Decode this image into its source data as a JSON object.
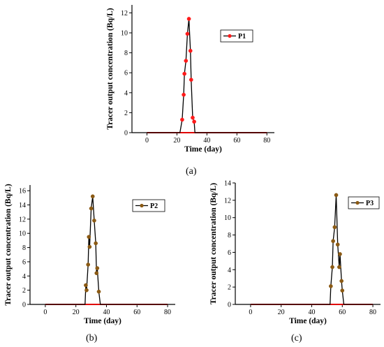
{
  "figure": {
    "sublabels": [
      "(a)",
      "(b)",
      "(c)"
    ]
  },
  "chart_data": [
    {
      "type": "line",
      "xlabel": "Time (day)",
      "ylabel": "Tracer output concentration (Bq/L)",
      "xlim": [
        -10,
        85
      ],
      "ylim": [
        0,
        12.8
      ],
      "xticks": [
        0,
        20,
        40,
        60,
        80
      ],
      "yticks": [
        0,
        2,
        4,
        6,
        8,
        10,
        12
      ],
      "legend_position": "top-right",
      "grid": false,
      "series": [
        {
          "name": "P1",
          "line_color": "#000000",
          "marker_color": "#ff1a1a",
          "baseline": {
            "color": "#e00000",
            "x_from": 0,
            "x_to": 80
          },
          "points": [
            [
              0,
              0
            ],
            [
              2,
              0
            ],
            [
              4,
              0
            ],
            [
              6,
              0
            ],
            [
              8,
              0
            ],
            [
              10,
              0
            ],
            [
              12,
              0
            ],
            [
              14,
              0
            ],
            [
              16,
              0
            ],
            [
              18,
              0
            ],
            [
              20,
              0
            ],
            [
              22,
              0
            ],
            [
              23.5,
              1.3
            ],
            [
              24.5,
              3.8
            ],
            [
              25,
              5.9
            ],
            [
              26,
              7.2
            ],
            [
              27,
              9.9
            ],
            [
              28,
              11.4
            ],
            [
              29,
              8.2
            ],
            [
              29.5,
              5.3
            ],
            [
              30.5,
              1.5
            ],
            [
              31.5,
              1.1
            ],
            [
              32,
              0
            ],
            [
              34,
              0
            ],
            [
              36,
              0
            ],
            [
              38,
              0
            ],
            [
              40,
              0
            ],
            [
              42,
              0
            ],
            [
              44,
              0
            ],
            [
              46,
              0
            ],
            [
              48,
              0
            ],
            [
              50,
              0
            ],
            [
              52,
              0
            ],
            [
              54,
              0
            ],
            [
              56,
              0
            ],
            [
              58,
              0
            ],
            [
              60,
              0
            ],
            [
              62,
              0
            ],
            [
              64,
              0
            ],
            [
              66,
              0
            ],
            [
              68,
              0
            ],
            [
              70,
              0
            ],
            [
              72,
              0
            ],
            [
              74,
              0
            ],
            [
              76,
              0
            ],
            [
              78,
              0
            ],
            [
              80,
              0
            ]
          ]
        }
      ]
    },
    {
      "type": "line",
      "xlabel": "Time (day)",
      "ylabel": "Tracer output concentration (Bq/L)",
      "xlim": [
        -10,
        85
      ],
      "ylim": [
        0,
        16.8
      ],
      "xticks": [
        0,
        20,
        40,
        60,
        80
      ],
      "yticks": [
        0,
        2,
        4,
        6,
        8,
        10,
        12,
        14,
        16
      ],
      "legend_position": "top-right",
      "grid": false,
      "series": [
        {
          "name": "P2",
          "line_color": "#000000",
          "marker_color": "#8b5a14",
          "baseline": {
            "color": "#e00000",
            "x_from": 0,
            "x_to": 80
          },
          "points": [
            [
              0,
              0
            ],
            [
              2,
              0
            ],
            [
              4,
              0
            ],
            [
              6,
              0
            ],
            [
              8,
              0
            ],
            [
              10,
              0
            ],
            [
              12,
              0
            ],
            [
              14,
              0
            ],
            [
              16,
              0
            ],
            [
              18,
              0
            ],
            [
              20,
              0
            ],
            [
              22,
              0
            ],
            [
              24,
              0
            ],
            [
              26,
              0
            ],
            [
              26.5,
              2.7
            ],
            [
              27,
              2
            ],
            [
              28,
              5.6
            ],
            [
              28.5,
              9.5
            ],
            [
              29,
              8.1
            ],
            [
              30,
              13.5
            ],
            [
              31,
              15.2
            ],
            [
              32,
              11.8
            ],
            [
              33,
              8.6
            ],
            [
              33.5,
              4.4
            ],
            [
              34,
              5.1
            ],
            [
              35,
              1.8
            ],
            [
              36,
              0
            ],
            [
              38,
              0
            ],
            [
              40,
              0
            ],
            [
              42,
              0
            ],
            [
              44,
              0
            ],
            [
              46,
              0
            ],
            [
              48,
              0
            ],
            [
              50,
              0
            ],
            [
              52,
              0
            ],
            [
              54,
              0
            ],
            [
              56,
              0
            ],
            [
              58,
              0
            ],
            [
              60,
              0
            ],
            [
              62,
              0
            ],
            [
              64,
              0
            ],
            [
              66,
              0
            ],
            [
              68,
              0
            ],
            [
              70,
              0
            ],
            [
              72,
              0
            ],
            [
              74,
              0
            ],
            [
              76,
              0
            ],
            [
              78,
              0
            ],
            [
              80,
              0
            ]
          ]
        }
      ]
    },
    {
      "type": "line",
      "xlabel": "Time (day)",
      "ylabel": "Tracer output concentration (Bq/L)",
      "xlim": [
        -10,
        85
      ],
      "ylim": [
        0,
        14
      ],
      "xticks": [
        0,
        20,
        40,
        60,
        80
      ],
      "yticks": [
        0,
        2,
        4,
        6,
        8,
        10,
        12,
        14
      ],
      "legend_position": "top-right",
      "grid": false,
      "series": [
        {
          "name": "P3",
          "line_color": "#000000",
          "marker_color": "#8b5a14",
          "baseline": {
            "color": "#e00000",
            "x_from": 0,
            "x_to": 80
          },
          "points": [
            [
              0,
              0
            ],
            [
              2,
              0
            ],
            [
              4,
              0
            ],
            [
              6,
              0
            ],
            [
              8,
              0
            ],
            [
              10,
              0
            ],
            [
              12,
              0
            ],
            [
              14,
              0
            ],
            [
              16,
              0
            ],
            [
              18,
              0
            ],
            [
              20,
              0
            ],
            [
              22,
              0
            ],
            [
              24,
              0
            ],
            [
              26,
              0
            ],
            [
              28,
              0
            ],
            [
              30,
              0
            ],
            [
              32,
              0
            ],
            [
              34,
              0
            ],
            [
              36,
              0
            ],
            [
              38,
              0
            ],
            [
              40,
              0
            ],
            [
              42,
              0
            ],
            [
              44,
              0
            ],
            [
              46,
              0
            ],
            [
              48,
              0
            ],
            [
              50,
              0
            ],
            [
              52,
              0
            ],
            [
              52.5,
              2.1
            ],
            [
              53.5,
              4.3
            ],
            [
              54,
              7.3
            ],
            [
              55,
              8.9
            ],
            [
              56,
              12.6
            ],
            [
              57,
              6.9
            ],
            [
              58,
              4.3
            ],
            [
              58.5,
              5.8
            ],
            [
              59.5,
              2.7
            ],
            [
              60,
              1.6
            ],
            [
              61,
              0
            ],
            [
              62,
              0
            ],
            [
              64,
              0
            ],
            [
              66,
              0
            ],
            [
              68,
              0
            ],
            [
              70,
              0
            ],
            [
              72,
              0
            ],
            [
              74,
              0
            ],
            [
              76,
              0
            ],
            [
              78,
              0
            ],
            [
              80,
              0
            ]
          ]
        }
      ]
    }
  ]
}
